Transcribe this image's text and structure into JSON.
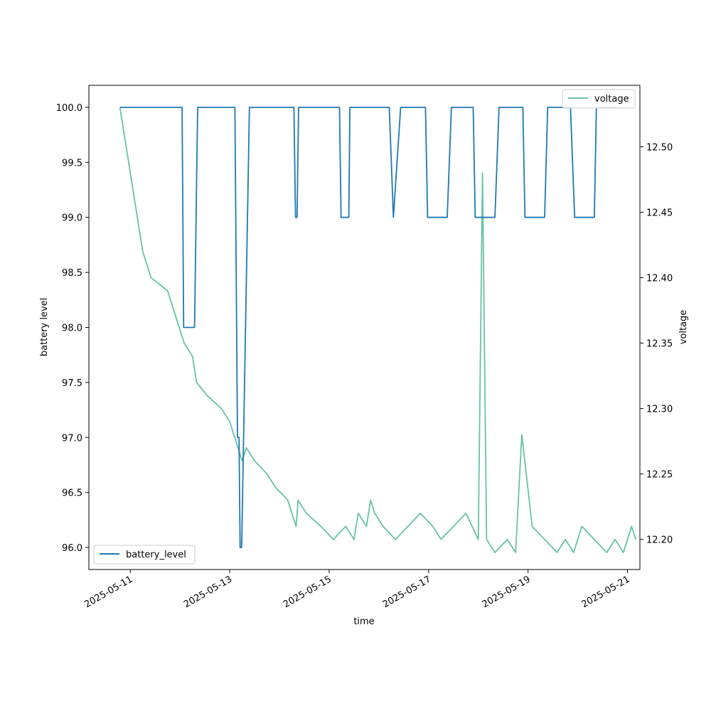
{
  "chart_data": {
    "type": "line",
    "xlabel": "time",
    "x_ticks": [
      "2025-05-11",
      "2025-05-13",
      "2025-05-15",
      "2025-05-17",
      "2025-05-19",
      "2025-05-21"
    ],
    "xlim": [
      "2025-05-10T04:00",
      "2025-05-21T06:00"
    ],
    "left_axis": {
      "label": "battery level",
      "ylim": [
        95.8,
        100.2
      ],
      "ticks": [
        "96.0",
        "96.5",
        "97.0",
        "97.5",
        "98.0",
        "98.5",
        "99.0",
        "99.5",
        "100.0"
      ]
    },
    "right_axis": {
      "label": "voltage",
      "ylim": [
        12.177,
        12.547
      ],
      "ticks": [
        "12.20",
        "12.25",
        "12.30",
        "12.35",
        "12.40",
        "12.45",
        "12.50"
      ]
    },
    "series": [
      {
        "name": "battery_level",
        "axis": "left",
        "color": "#1f77b4",
        "points": [
          [
            "2025-05-10T19:00",
            100.0
          ],
          [
            "2025-05-12T01:00",
            100.0
          ],
          [
            "2025-05-12T01:45",
            98.0
          ],
          [
            "2025-05-12T07:00",
            98.0
          ],
          [
            "2025-05-12T08:30",
            100.0
          ],
          [
            "2025-05-13T02:30",
            100.0
          ],
          [
            "2025-05-13T03:45",
            97.0
          ],
          [
            "2025-05-13T04:30",
            97.0
          ],
          [
            "2025-05-13T05:00",
            96.0
          ],
          [
            "2025-05-13T05:45",
            96.0
          ],
          [
            "2025-05-13T09:30",
            100.0
          ],
          [
            "2025-05-14T07:00",
            100.0
          ],
          [
            "2025-05-14T07:45",
            99.0
          ],
          [
            "2025-05-14T08:30",
            99.0
          ],
          [
            "2025-05-14T09:15",
            100.0
          ],
          [
            "2025-05-15T05:00",
            100.0
          ],
          [
            "2025-05-15T05:45",
            99.0
          ],
          [
            "2025-05-15T09:30",
            99.0
          ],
          [
            "2025-05-15T10:00",
            100.0
          ],
          [
            "2025-05-16T05:00",
            100.0
          ],
          [
            "2025-05-16T07:00",
            99.0
          ],
          [
            "2025-05-16T10:30",
            100.0
          ],
          [
            "2025-05-16T22:30",
            100.0
          ],
          [
            "2025-05-16T23:30",
            99.0
          ],
          [
            "2025-05-17T09:00",
            99.0
          ],
          [
            "2025-05-17T11:00",
            100.0
          ],
          [
            "2025-05-17T21:30",
            100.0
          ],
          [
            "2025-05-17T22:30",
            99.0
          ],
          [
            "2025-05-18T08:00",
            99.0
          ],
          [
            "2025-05-18T10:00",
            100.0
          ],
          [
            "2025-05-18T21:30",
            100.0
          ],
          [
            "2025-05-18T22:30",
            99.0
          ],
          [
            "2025-05-19T08:00",
            99.0
          ],
          [
            "2025-05-19T09:30",
            100.0
          ],
          [
            "2025-05-19T20:30",
            100.0
          ],
          [
            "2025-05-19T22:30",
            99.0
          ],
          [
            "2025-05-20T08:00",
            99.0
          ],
          [
            "2025-05-20T09:00",
            100.0
          ],
          [
            "2025-05-20T19:00",
            100.0
          ]
        ]
      },
      {
        "name": "voltage",
        "axis": "right",
        "color": "#66c2a5",
        "points": [
          [
            "2025-05-10T19:00",
            12.53
          ],
          [
            "2025-05-10T21:00",
            12.51
          ],
          [
            "2025-05-10T23:00",
            12.49
          ],
          [
            "2025-05-11T00:00",
            12.48
          ],
          [
            "2025-05-11T02:00",
            12.46
          ],
          [
            "2025-05-11T04:00",
            12.44
          ],
          [
            "2025-05-11T06:00",
            12.42
          ],
          [
            "2025-05-11T08:00",
            12.41
          ],
          [
            "2025-05-11T10:00",
            12.4
          ],
          [
            "2025-05-11T18:00",
            12.39
          ],
          [
            "2025-05-11T22:00",
            12.37
          ],
          [
            "2025-05-12T02:00",
            12.35
          ],
          [
            "2025-05-12T06:00",
            12.34
          ],
          [
            "2025-05-12T08:00",
            12.32
          ],
          [
            "2025-05-12T13:00",
            12.31
          ],
          [
            "2025-05-12T20:00",
            12.3
          ],
          [
            "2025-05-13T00:00",
            12.29
          ],
          [
            "2025-05-13T04:00",
            12.27
          ],
          [
            "2025-05-13T06:00",
            12.26
          ],
          [
            "2025-05-13T08:00",
            12.27
          ],
          [
            "2025-05-13T12:00",
            12.26
          ],
          [
            "2025-05-13T18:00",
            12.25
          ],
          [
            "2025-05-13T22:00",
            12.24
          ],
          [
            "2025-05-14T04:00",
            12.23
          ],
          [
            "2025-05-14T06:00",
            12.22
          ],
          [
            "2025-05-14T08:00",
            12.21
          ],
          [
            "2025-05-14T09:00",
            12.23
          ],
          [
            "2025-05-14T13:00",
            12.22
          ],
          [
            "2025-05-14T20:00",
            12.21
          ],
          [
            "2025-05-15T02:00",
            12.2
          ],
          [
            "2025-05-15T08:00",
            12.21
          ],
          [
            "2025-05-15T12:00",
            12.2
          ],
          [
            "2025-05-15T14:00",
            12.22
          ],
          [
            "2025-05-15T18:00",
            12.21
          ],
          [
            "2025-05-15T20:00",
            12.23
          ],
          [
            "2025-05-15T22:00",
            12.22
          ],
          [
            "2025-05-16T02:00",
            12.21
          ],
          [
            "2025-05-16T08:00",
            12.2
          ],
          [
            "2025-05-16T20:00",
            12.22
          ],
          [
            "2025-05-17T02:00",
            12.21
          ],
          [
            "2025-05-17T06:00",
            12.2
          ],
          [
            "2025-05-17T18:00",
            12.22
          ],
          [
            "2025-05-18T00:00",
            12.2
          ],
          [
            "2025-05-18T02:00",
            12.48
          ],
          [
            "2025-05-18T04:00",
            12.2
          ],
          [
            "2025-05-18T08:00",
            12.19
          ],
          [
            "2025-05-18T14:00",
            12.2
          ],
          [
            "2025-05-18T18:00",
            12.19
          ],
          [
            "2025-05-18T21:00",
            12.28
          ],
          [
            "2025-05-19T02:00",
            12.21
          ],
          [
            "2025-05-19T08:00",
            12.2
          ],
          [
            "2025-05-19T14:00",
            12.19
          ],
          [
            "2025-05-19T18:00",
            12.2
          ],
          [
            "2025-05-19T22:00",
            12.19
          ],
          [
            "2025-05-20T02:00",
            12.21
          ],
          [
            "2025-05-20T08:00",
            12.2
          ],
          [
            "2025-05-20T14:00",
            12.19
          ],
          [
            "2025-05-20T18:00",
            12.2
          ],
          [
            "2025-05-20T22:00",
            12.19
          ],
          [
            "2025-05-21T02:00",
            12.21
          ],
          [
            "2025-05-21T04:00",
            12.2
          ]
        ]
      }
    ],
    "legends": [
      {
        "series": "battery_level",
        "placement": "lower-left"
      },
      {
        "series": "voltage",
        "placement": "upper-right"
      }
    ],
    "grid": false
  }
}
